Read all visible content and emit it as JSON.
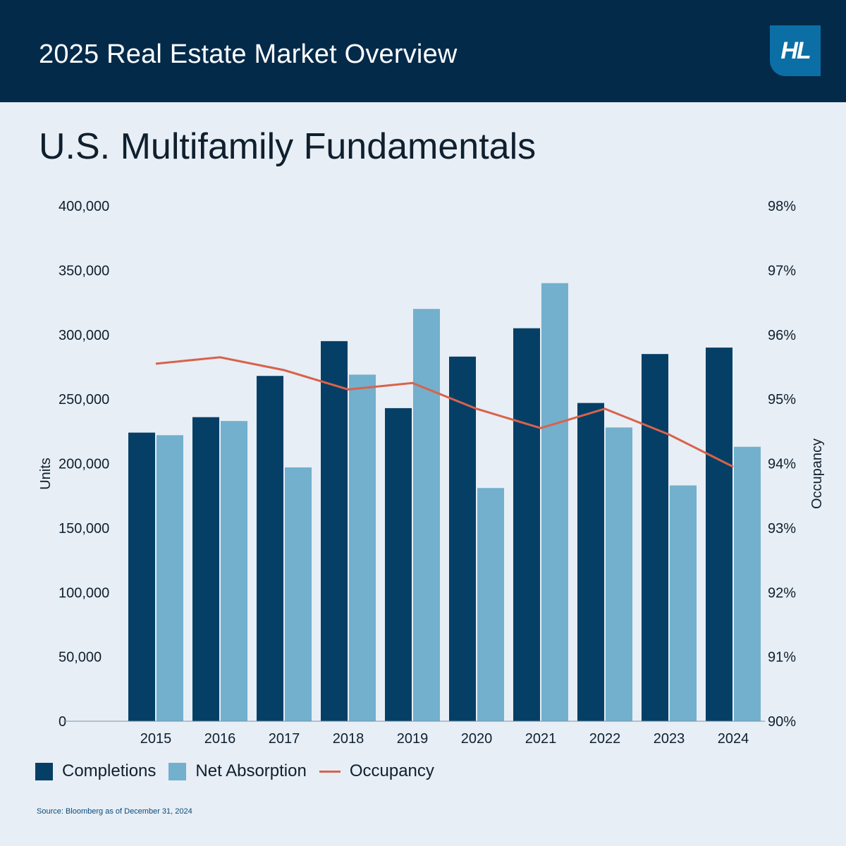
{
  "header": {
    "title": "2025 Real Estate Market Overview",
    "logo_text": "HL"
  },
  "colors": {
    "header_bg": "#042a4a",
    "completions": "#053f66",
    "net_absorption": "#72b0cd",
    "occupancy": "#d9624b",
    "background": "#e7eef5"
  },
  "chart_data": {
    "type": "bar",
    "title": "U.S. Multifamily Fundamentals",
    "ylabel": "Units",
    "y2label": "Occupancy",
    "ylim": [
      0,
      400000
    ],
    "y2lim": [
      90,
      98
    ],
    "yticks": [
      "0",
      "50,000",
      "100,000",
      "150,000",
      "200,000",
      "250,000",
      "300,000",
      "350,000",
      "400,000"
    ],
    "y2ticks": [
      "90%",
      "91%",
      "92%",
      "93%",
      "94%",
      "95%",
      "96%",
      "97%",
      "98%"
    ],
    "categories": [
      "2015",
      "2016",
      "2017",
      "2018",
      "2019",
      "2020",
      "2021",
      "2022",
      "2023",
      "2024"
    ],
    "series": [
      {
        "name": "Completions",
        "kind": "bar",
        "axis": "left",
        "values": [
          224000,
          236000,
          268000,
          295000,
          243000,
          283000,
          305000,
          247000,
          285000,
          290000
        ]
      },
      {
        "name": "Net Absorption",
        "kind": "bar",
        "axis": "left",
        "values": [
          222000,
          233000,
          197000,
          269000,
          320000,
          181000,
          340000,
          228000,
          183000,
          213000
        ]
      },
      {
        "name": "Occupancy",
        "kind": "line",
        "axis": "right",
        "values": [
          95.55,
          95.65,
          95.45,
          95.15,
          95.25,
          94.85,
          94.55,
          94.85,
          94.45,
          93.95
        ]
      }
    ],
    "grid": false,
    "legend_position": "bottom-left"
  },
  "legend": {
    "completions": "Completions",
    "net_absorption": "Net Absorption",
    "occupancy": "Occupancy"
  },
  "source": "Source: Bloomberg as of December 31, 2024"
}
